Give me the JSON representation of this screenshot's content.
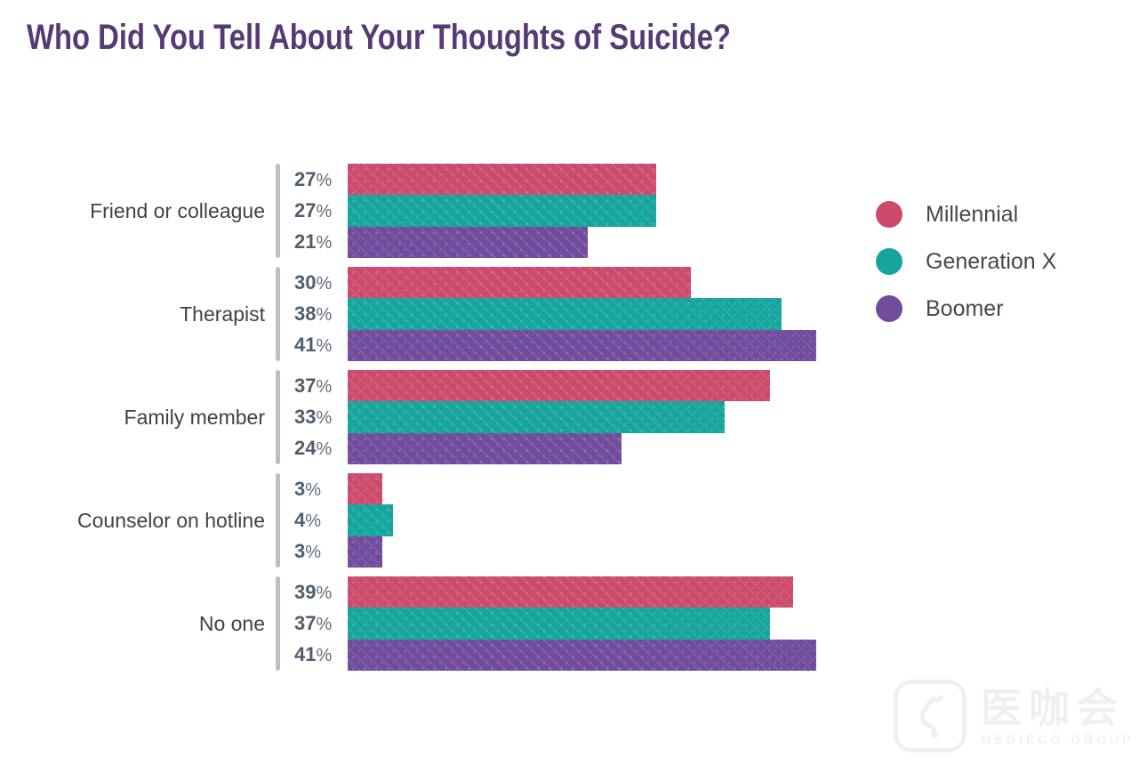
{
  "title": "Who Did You Tell About Your Thoughts of Suicide?",
  "colors": {
    "title": "#563a76",
    "millennial": "#cc4b6c",
    "generation_x": "#16a59d",
    "boomer": "#714c9d",
    "axis_tick": "#b9bfc5",
    "value_label": "#4e5e6d",
    "category_label": "#3d4349",
    "legend_label": "#44484c"
  },
  "chart_data": {
    "type": "bar",
    "orientation": "horizontal",
    "title": "Who Did You Tell About Your Thoughts of Suicide?",
    "categories": [
      "Friend or colleague",
      "Therapist",
      "Family member",
      "Counselor on hotline",
      "No one"
    ],
    "series": [
      {
        "name": "Millennial",
        "color": "#cc4b6c",
        "values": [
          27,
          30,
          37,
          3,
          39
        ]
      },
      {
        "name": "Generation X",
        "color": "#16a59d",
        "values": [
          27,
          38,
          33,
          4,
          37
        ]
      },
      {
        "name": "Boomer",
        "color": "#714c9d",
        "values": [
          21,
          41,
          24,
          3,
          41
        ]
      }
    ],
    "value_suffix": "%",
    "data_labels": true,
    "xlim": [
      0,
      45
    ],
    "grid": false,
    "axis_lines": "per-group left tick bar",
    "legend_position": "right"
  },
  "watermark": {
    "icon": "stethoscope-logo-icon",
    "text": "医咖会",
    "subtext": "MEDIECO GROUP"
  }
}
